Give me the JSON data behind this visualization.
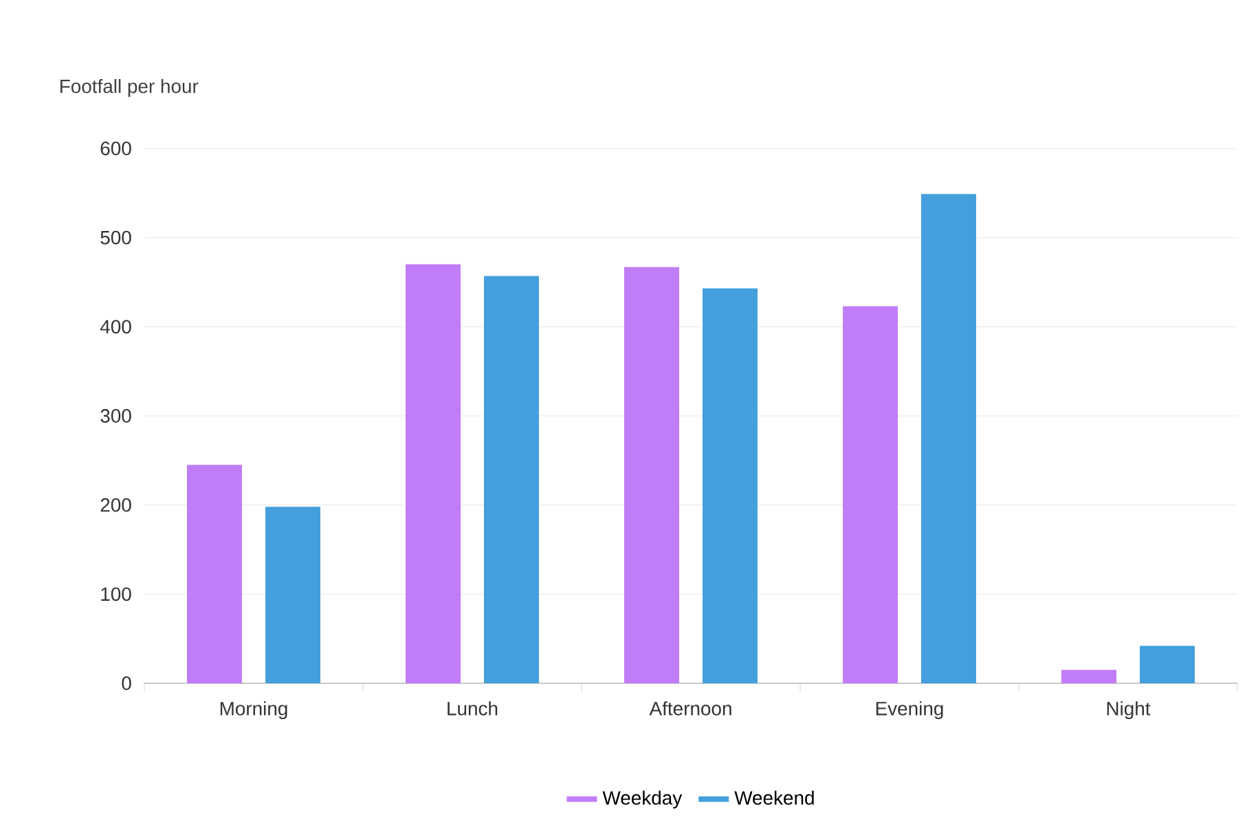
{
  "chart_data": {
    "type": "bar",
    "ylabel": "Footfall per hour",
    "categories": [
      "Morning",
      "Lunch",
      "Afternoon",
      "Evening",
      "Night"
    ],
    "series": [
      {
        "name": "Weekday",
        "color": "#c17cf7",
        "values": [
          245,
          470,
          467,
          423,
          15
        ]
      },
      {
        "name": "Weekend",
        "color": "#449fdc",
        "values": [
          198,
          457,
          443,
          549,
          42
        ]
      }
    ],
    "ylim": [
      0,
      600
    ],
    "yticks": [
      0,
      100,
      200,
      300,
      400,
      500,
      600
    ],
    "grid": "y",
    "legend": "bottom"
  }
}
